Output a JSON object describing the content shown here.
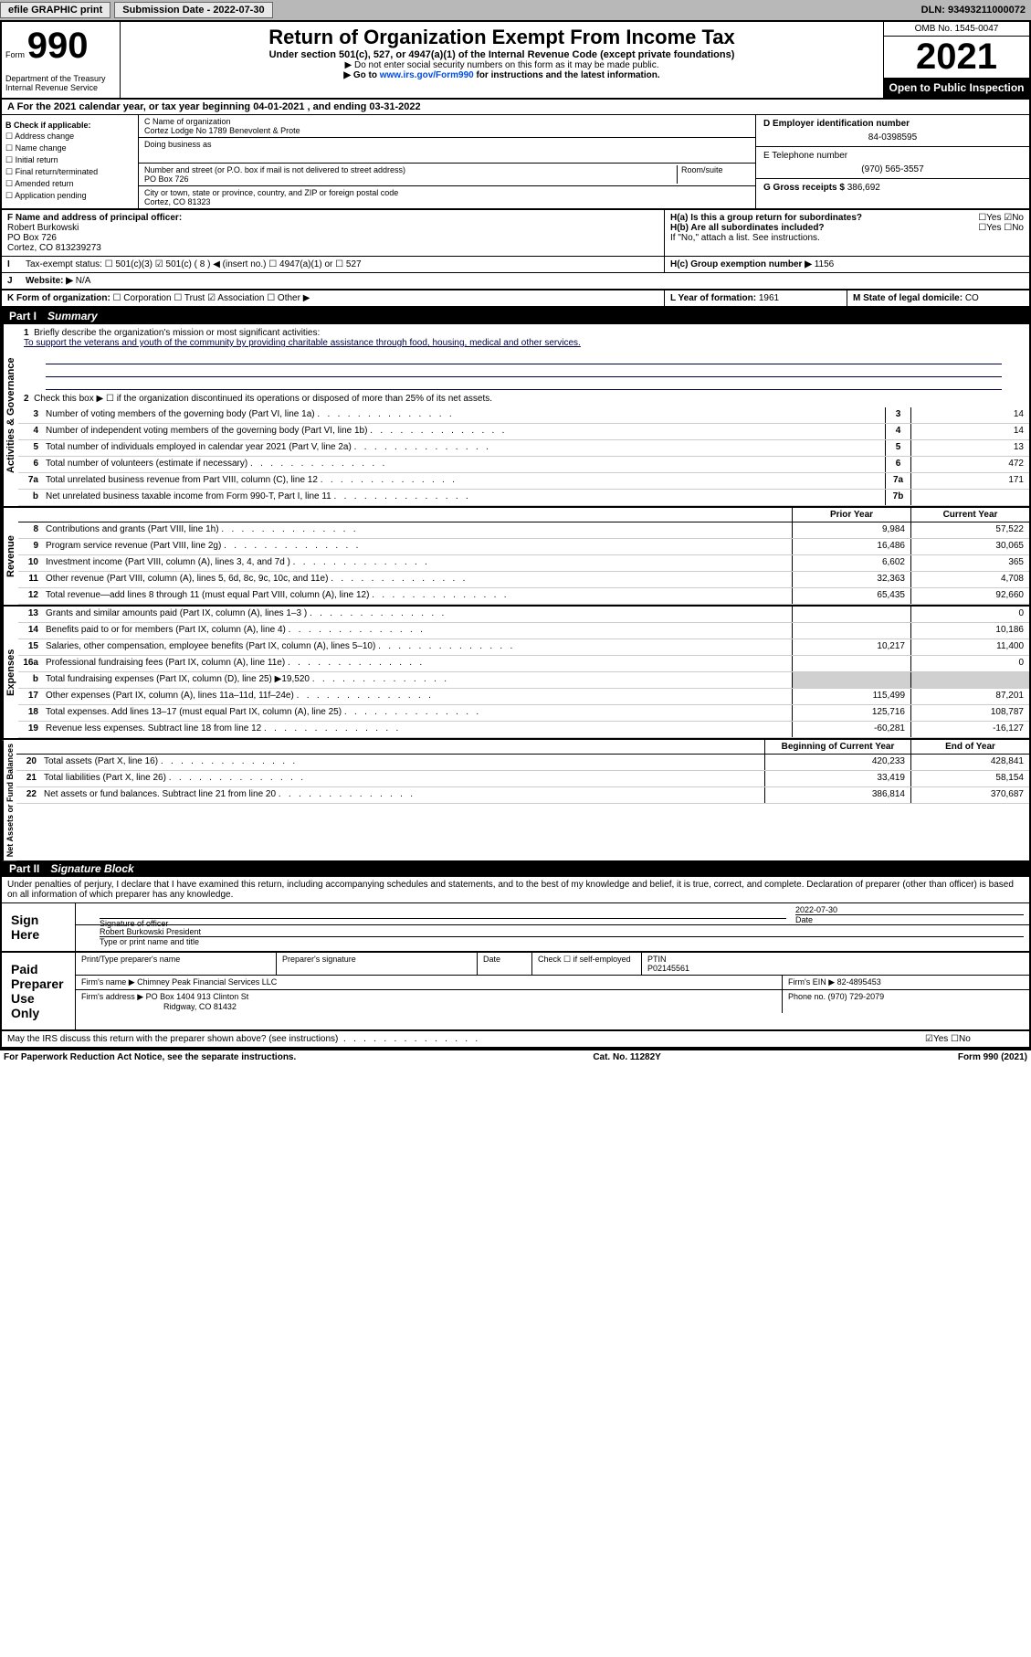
{
  "topbar": {
    "efile": "efile GRAPHIC print",
    "submission_label": "Submission Date - 2022-07-30",
    "dln": "DLN: 93493211000072"
  },
  "header": {
    "form_prefix": "Form",
    "form_number": "990",
    "dept": "Department of the Treasury\nInternal Revenue Service",
    "title": "Return of Organization Exempt From Income Tax",
    "sub1": "Under section 501(c), 527, or 4947(a)(1) of the Internal Revenue Code (except private foundations)",
    "sub2": "▶ Do not enter social security numbers on this form as it may be made public.",
    "sub3": "▶ Go to www.irs.gov/Form990 for instructions and the latest information.",
    "omb": "OMB No. 1545-0047",
    "year": "2021",
    "open_public": "Open to Public Inspection"
  },
  "tax_year_line": "A For the 2021 calendar year, or tax year beginning 04-01-2021   , and ending 03-31-2022",
  "box_b": {
    "label": "B Check if applicable:",
    "items": [
      "Address change",
      "Name change",
      "Initial return",
      "Final return/terminated",
      "Amended return",
      "Application pending"
    ]
  },
  "box_c": {
    "name_label": "C Name of organization",
    "name": "Cortez Lodge No 1789 Benevolent & Prote",
    "dba_label": "Doing business as",
    "addr_label": "Number and street (or P.O. box if mail is not delivered to street address)",
    "room_label": "Room/suite",
    "addr": "PO Box 726",
    "city_label": "City or town, state or province, country, and ZIP or foreign postal code",
    "city": "Cortez, CO  81323"
  },
  "box_d": {
    "label": "D Employer identification number",
    "val": "84-0398595"
  },
  "box_e": {
    "label": "E Telephone number",
    "val": "(970) 565-3557"
  },
  "box_g": {
    "label": "G Gross receipts $",
    "val": "386,692"
  },
  "box_f": {
    "label": "F  Name and address of principal officer:",
    "name": "Robert Burkowski",
    "addr": "PO Box 726",
    "city": "Cortez, CO  813239273"
  },
  "box_h": {
    "a": "H(a)  Is this a group return for subordinates?",
    "b": "H(b)  Are all subordinates included?",
    "note": "If \"No,\" attach a list. See instructions.",
    "c": "H(c)  Group exemption number ▶",
    "c_val": "1156"
  },
  "box_i": {
    "label": "Tax-exempt status:",
    "insert": "( 8 ) ◀ (insert no.)"
  },
  "box_j": {
    "label": "Website: ▶",
    "val": "N/A"
  },
  "box_k": {
    "label": "K Form of organization:"
  },
  "box_l": {
    "label": "L Year of formation:",
    "val": "1961"
  },
  "box_m": {
    "label": "M State of legal domicile:",
    "val": "CO"
  },
  "part1": {
    "label": "Part I",
    "title": "Summary",
    "side_gov": "Activities & Governance",
    "side_rev": "Revenue",
    "side_exp": "Expenses",
    "side_net": "Net Assets or Fund Balances",
    "line1_label": "Briefly describe the organization's mission or most significant activities:",
    "line1_text": "To support the veterans and youth of the community by providing charitable assistance through food, housing, medical and other services.",
    "line2": "Check this box ▶ ☐  if the organization discontinued its operations or disposed of more than 25% of its net assets.",
    "lines_gov": [
      {
        "n": "3",
        "d": "Number of voting members of the governing body (Part VI, line 1a)",
        "box": "3",
        "v": "14"
      },
      {
        "n": "4",
        "d": "Number of independent voting members of the governing body (Part VI, line 1b)",
        "box": "4",
        "v": "14"
      },
      {
        "n": "5",
        "d": "Total number of individuals employed in calendar year 2021 (Part V, line 2a)",
        "box": "5",
        "v": "13"
      },
      {
        "n": "6",
        "d": "Total number of volunteers (estimate if necessary)",
        "box": "6",
        "v": "472"
      },
      {
        "n": "7a",
        "d": "Total unrelated business revenue from Part VIII, column (C), line 12",
        "box": "7a",
        "v": "171"
      },
      {
        "n": "b",
        "d": "Net unrelated business taxable income from Form 990-T, Part I, line 11",
        "box": "7b",
        "v": ""
      }
    ],
    "col_prior": "Prior Year",
    "col_current": "Current Year",
    "col_begin": "Beginning of Current Year",
    "col_end": "End of Year",
    "lines_rev": [
      {
        "n": "8",
        "d": "Contributions and grants (Part VIII, line 1h)",
        "p": "9,984",
        "c": "57,522"
      },
      {
        "n": "9",
        "d": "Program service revenue (Part VIII, line 2g)",
        "p": "16,486",
        "c": "30,065"
      },
      {
        "n": "10",
        "d": "Investment income (Part VIII, column (A), lines 3, 4, and 7d )",
        "p": "6,602",
        "c": "365"
      },
      {
        "n": "11",
        "d": "Other revenue (Part VIII, column (A), lines 5, 6d, 8c, 9c, 10c, and 11e)",
        "p": "32,363",
        "c": "4,708"
      },
      {
        "n": "12",
        "d": "Total revenue—add lines 8 through 11 (must equal Part VIII, column (A), line 12)",
        "p": "65,435",
        "c": "92,660"
      }
    ],
    "lines_exp": [
      {
        "n": "13",
        "d": "Grants and similar amounts paid (Part IX, column (A), lines 1–3 )",
        "p": "",
        "c": "0"
      },
      {
        "n": "14",
        "d": "Benefits paid to or for members (Part IX, column (A), line 4)",
        "p": "",
        "c": "10,186"
      },
      {
        "n": "15",
        "d": "Salaries, other compensation, employee benefits (Part IX, column (A), lines 5–10)",
        "p": "10,217",
        "c": "11,400"
      },
      {
        "n": "16a",
        "d": "Professional fundraising fees (Part IX, column (A), line 11e)",
        "p": "",
        "c": "0"
      },
      {
        "n": "b",
        "d": "Total fundraising expenses (Part IX, column (D), line 25) ▶19,520",
        "p": "shaded",
        "c": "shaded"
      },
      {
        "n": "17",
        "d": "Other expenses (Part IX, column (A), lines 11a–11d, 11f–24e)",
        "p": "115,499",
        "c": "87,201"
      },
      {
        "n": "18",
        "d": "Total expenses. Add lines 13–17 (must equal Part IX, column (A), line 25)",
        "p": "125,716",
        "c": "108,787"
      },
      {
        "n": "19",
        "d": "Revenue less expenses. Subtract line 18 from line 12",
        "p": "-60,281",
        "c": "-16,127"
      }
    ],
    "lines_net": [
      {
        "n": "20",
        "d": "Total assets (Part X, line 16)",
        "p": "420,233",
        "c": "428,841"
      },
      {
        "n": "21",
        "d": "Total liabilities (Part X, line 26)",
        "p": "33,419",
        "c": "58,154"
      },
      {
        "n": "22",
        "d": "Net assets or fund balances. Subtract line 21 from line 20",
        "p": "386,814",
        "c": "370,687"
      }
    ]
  },
  "part2": {
    "label": "Part II",
    "title": "Signature Block",
    "penalties": "Under penalties of perjury, I declare that I have examined this return, including accompanying schedules and statements, and to the best of my knowledge and belief, it is true, correct, and complete. Declaration of preparer (other than officer) is based on all information of which preparer has any knowledge.",
    "sign_here": "Sign Here",
    "sig_officer": "Signature of officer",
    "sig_date": "2022-07-30",
    "sig_date_label": "Date",
    "officer_name": "Robert Burkowski  President",
    "type_name": "Type or print name and title",
    "paid_label": "Paid Preparer Use Only",
    "prep_name_label": "Print/Type preparer's name",
    "prep_sig_label": "Preparer's signature",
    "prep_date_label": "Date",
    "prep_check": "Check ☐ if self-employed",
    "ptin_label": "PTIN",
    "ptin": "P02145561",
    "firm_name_label": "Firm's name   ▶",
    "firm_name": "Chimney Peak Financial Services LLC",
    "firm_ein_label": "Firm's EIN ▶",
    "firm_ein": "82-4895453",
    "firm_addr_label": "Firm's address ▶",
    "firm_addr": "PO Box 1404 913 Clinton St",
    "firm_city": "Ridgway, CO  81432",
    "firm_phone_label": "Phone no.",
    "firm_phone": "(970) 729-2079",
    "discuss": "May the IRS discuss this return with the preparer shown above? (see instructions)"
  },
  "footer": {
    "paperwork": "For Paperwork Reduction Act Notice, see the separate instructions.",
    "cat": "Cat. No. 11282Y",
    "form": "Form 990 (2021)"
  }
}
